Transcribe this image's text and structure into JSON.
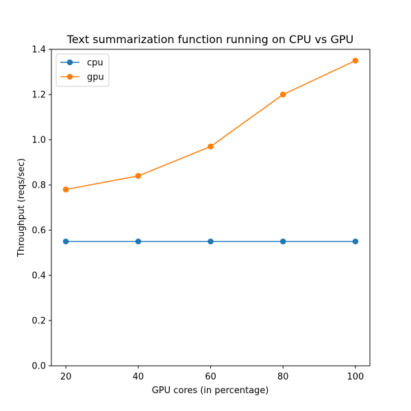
{
  "chart_data": {
    "type": "line",
    "title": "Text summarization function running on CPU vs GPU",
    "xlabel": "GPU cores (in percentage)",
    "ylabel": "Throughput (reqs/sec)",
    "x": [
      20,
      40,
      60,
      80,
      100
    ],
    "xticks": [
      20,
      40,
      60,
      80,
      100
    ],
    "xlim": [
      16,
      104
    ],
    "yticks": [
      "0.0",
      "0.2",
      "0.4",
      "0.6",
      "0.8",
      "1.0",
      "1.2",
      "1.4"
    ],
    "ylim": [
      0,
      1.4
    ],
    "grid": false,
    "legend_position": "top-left",
    "series": [
      {
        "name": "cpu",
        "color": "#1f77b4",
        "marker": "circle",
        "values": [
          0.55,
          0.55,
          0.55,
          0.55,
          0.55
        ]
      },
      {
        "name": "gpu",
        "color": "#ff7f0e",
        "marker": "circle",
        "values": [
          0.78,
          0.84,
          0.97,
          1.2,
          1.35
        ]
      }
    ]
  }
}
